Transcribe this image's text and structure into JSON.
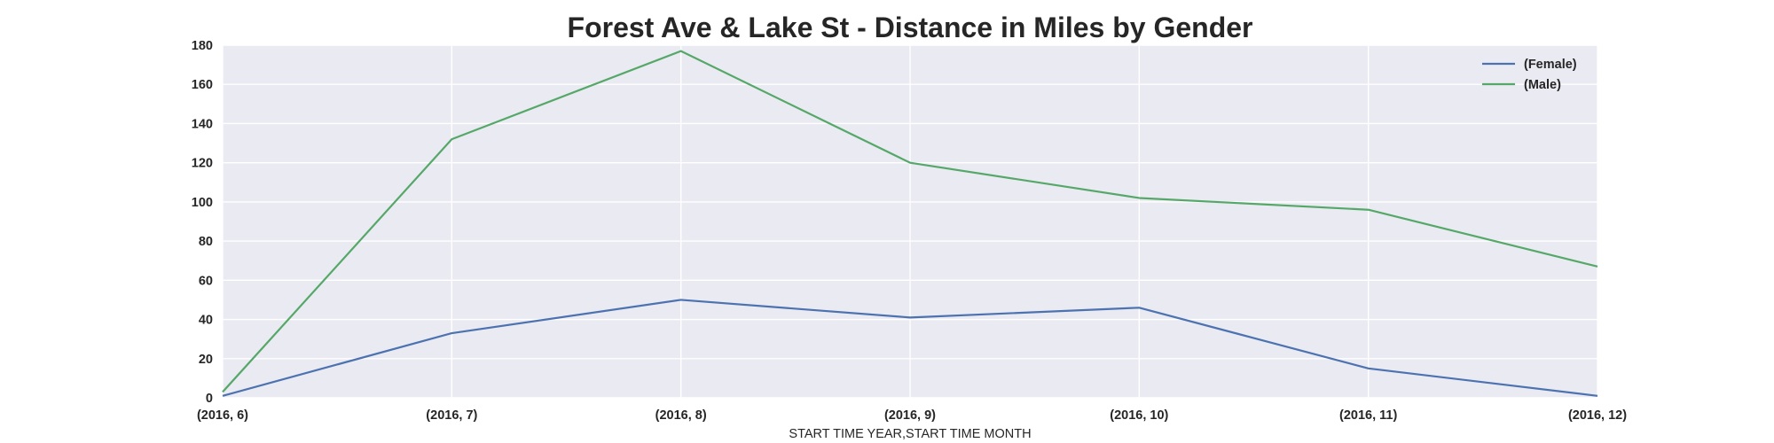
{
  "chart_data": {
    "type": "line",
    "title": "Forest Ave & Lake St - Distance in Miles by Gender",
    "xlabel": "START TIME YEAR,START TIME MONTH",
    "ylabel": "",
    "categories": [
      "(2016, 6)",
      "(2016, 7)",
      "(2016, 8)",
      "(2016, 9)",
      "(2016, 10)",
      "(2016, 11)",
      "(2016, 12)"
    ],
    "ylim": [
      0,
      180
    ],
    "yticks": [
      0,
      20,
      40,
      60,
      80,
      100,
      120,
      140,
      160,
      180
    ],
    "grid": true,
    "legend_position": "top-right",
    "background_color": "#eaeaf2",
    "series": [
      {
        "name": "(Female)",
        "color": "#4c72b0",
        "values": [
          1,
          33,
          50,
          41,
          46,
          15,
          1
        ]
      },
      {
        "name": "(Male)",
        "color": "#55a868",
        "values": [
          3,
          132,
          177,
          120,
          102,
          96,
          67
        ]
      }
    ]
  }
}
